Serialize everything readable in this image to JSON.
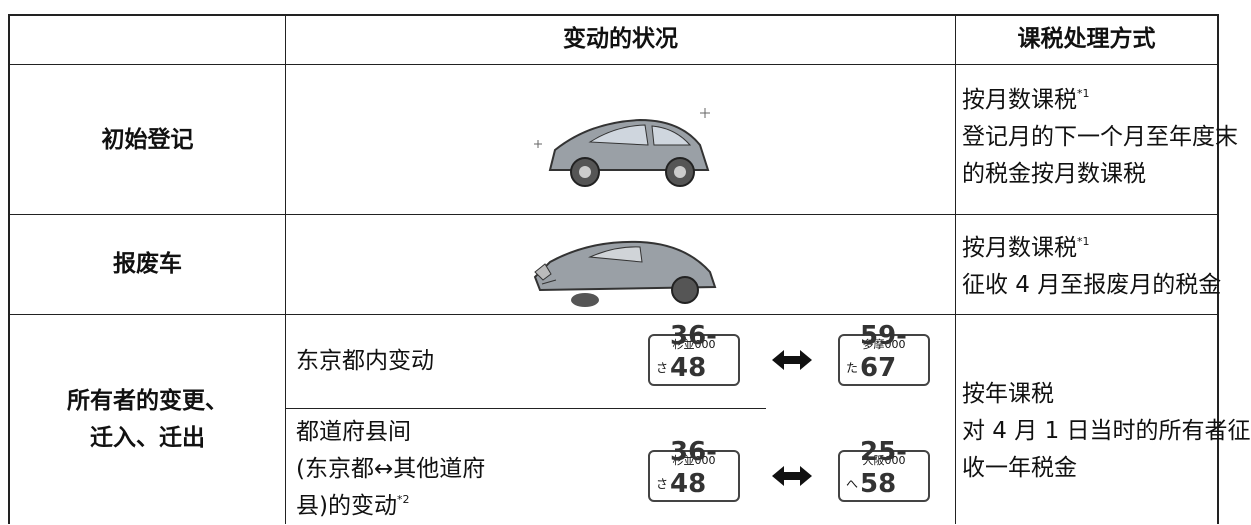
{
  "table": {
    "header": {
      "situation": "变动的状况",
      "tax_method": "课税处理方式"
    },
    "rows": [
      {
        "label": "初始登记",
        "tax_title": "按月数课税",
        "tax_note": "*1",
        "tax_lines": [
          "登记月的下一个月至年度末",
          "的税金按月数课税"
        ]
      },
      {
        "label": "报废车",
        "tax_title": "按月数课税",
        "tax_note": "*1",
        "tax_lines": [
          "征收 4 月至报废月的税金"
        ]
      },
      {
        "label_lines": [
          "所有者的变更、",
          "迁入、迁出"
        ],
        "sub_rows": [
          {
            "text_lines": [
              "东京都内变动"
            ],
            "plates": [
              {
                "area": "杉並000",
                "kana": "さ",
                "number": "36-48"
              },
              {
                "area": "多摩000",
                "kana": "た",
                "number": "59-67"
              }
            ]
          },
          {
            "text_lines": [
              "都道府县间",
              "(东京都↔其他道府"
            ],
            "last_line": "县)的变动",
            "note": "*2",
            "plates": [
              {
                "area": "杉並000",
                "kana": "さ",
                "number": "36-48"
              },
              {
                "area": "大阪000",
                "kana": "へ",
                "number": "25-58"
              }
            ]
          }
        ],
        "tax_lines": [
          "按年课税",
          "对 4 月 1 日当时的所有者征",
          "收一年税金"
        ]
      }
    ]
  }
}
